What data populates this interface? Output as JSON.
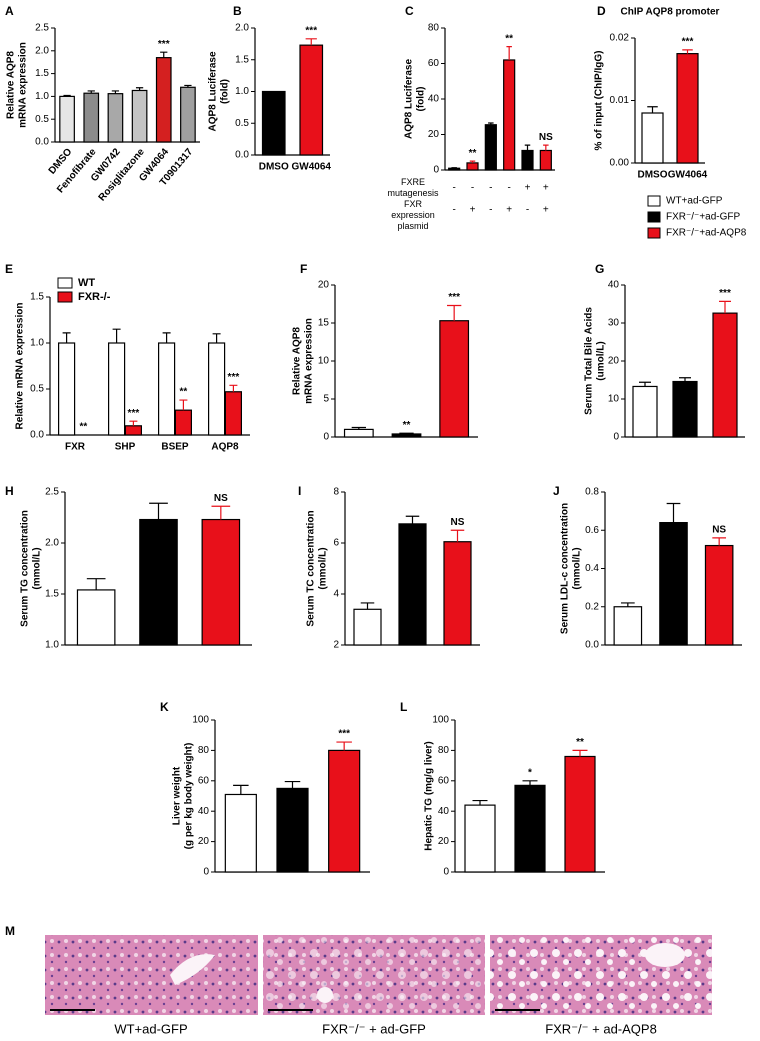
{
  "chart_data": [
    {
      "panel": "A",
      "type": "bar",
      "ylabel": [
        "Relative AQP8",
        "mRNA expression"
      ],
      "categories": [
        "DMSO",
        "Fenofibrate",
        "GW0742",
        "Rosiglitazone",
        "GW4064",
        "T0901317"
      ],
      "values": [
        1.0,
        1.07,
        1.06,
        1.13,
        1.85,
        1.2
      ],
      "errors": [
        0.02,
        0.05,
        0.06,
        0.06,
        0.12,
        0.04
      ],
      "colors": [
        "#e6e6e6",
        "#8c8c8c",
        "#a8a8a8",
        "#c4c4c4",
        "#d42020",
        "#a0a0a0"
      ],
      "significance": [
        null,
        null,
        null,
        null,
        "***",
        null
      ],
      "ylim": [
        0,
        2.5
      ],
      "yticks": [
        {
          "value": 0,
          "label": "0.0"
        },
        0.5,
        {
          "value": 1,
          "label": "1.0"
        },
        1.5,
        {
          "value": 2,
          "label": "2.0"
        },
        2.5
      ]
    },
    {
      "panel": "B",
      "type": "bar",
      "ylabel": [
        "AQP8 Luciferase",
        "(fold)"
      ],
      "categories": [
        "DMSO",
        "GW4064"
      ],
      "values": [
        1.0,
        1.73
      ],
      "errors": [
        null,
        0.1
      ],
      "colors": [
        "#000000",
        "#e8101a"
      ],
      "significance": [
        null,
        "***"
      ],
      "ylim": [
        0,
        2
      ],
      "yticks": [
        {
          "value": 0,
          "label": "0.0"
        },
        0.5,
        {
          "value": 1,
          "label": "1.0"
        },
        1.5,
        {
          "value": 2,
          "label": "2.0"
        }
      ]
    },
    {
      "panel": "C",
      "type": "bar",
      "ylabel": [
        "AQP8 Luciferase",
        "(fold)"
      ],
      "values": [
        1,
        4,
        25.5,
        62,
        11,
        11
      ],
      "errors": [
        0.3,
        1,
        1,
        7.5,
        3,
        3
      ],
      "colors": [
        "#000000",
        "#e8101a",
        "#000000",
        "#e8101a",
        "#000000",
        "#e8101a"
      ],
      "significance": [
        null,
        "**",
        null,
        "**",
        null,
        "NS"
      ],
      "ylim": [
        0,
        80
      ],
      "yticks": [
        0,
        20,
        40,
        60,
        80
      ],
      "conditions": [
        {
          "label": "FXRE mutagenesis",
          "values": [
            "-",
            "-",
            "-",
            "-",
            "+",
            "+"
          ]
        },
        {
          "label": "FXR expression plasmid",
          "values": [
            "-",
            "+",
            "-",
            "+",
            "-",
            "+"
          ]
        }
      ]
    },
    {
      "panel": "D",
      "type": "bar",
      "title": "ChIP AQP8 promoter",
      "ylabel": [
        "% of input  (ChIP/IgG)"
      ],
      "categories": [
        "DMSO",
        "GW4064"
      ],
      "values": [
        0.008,
        0.0175
      ],
      "errors": [
        0.001,
        0.0006
      ],
      "colors": [
        "#ffffff",
        "#e8101a"
      ],
      "significance": [
        null,
        "***"
      ],
      "ylim": [
        0,
        0.02
      ],
      "yticks": [
        {
          "value": 0,
          "label": "0.00"
        },
        0.01,
        0.02
      ]
    },
    {
      "panel": "E",
      "type": "bar",
      "ylabel": [
        "Relative mRNA expression"
      ],
      "categories": [
        "FXR",
        "SHP",
        "BSEP",
        "AQP8"
      ],
      "legend": "upper left",
      "series": [
        {
          "name": "WT",
          "color": "#ffffff",
          "values": [
            1,
            1,
            1,
            1
          ],
          "errors": [
            0.11,
            0.15,
            0.11,
            0.1
          ]
        },
        {
          "name": "FXR-/-",
          "color": "#e8101a",
          "values": [
            0,
            0.1,
            0.27,
            0.47
          ],
          "errors": [
            null,
            0.05,
            0.11,
            0.07
          ],
          "significance": [
            "**",
            "***",
            "**",
            "***"
          ]
        }
      ],
      "ylim": [
        0,
        1.5
      ],
      "yticks": [
        {
          "value": 0,
          "label": "0.0"
        },
        0.5,
        {
          "value": 1,
          "label": "1.0"
        },
        1.5
      ]
    },
    {
      "panel": "F",
      "type": "bar",
      "ylabel": [
        "Relative AQP8",
        "mRNA expression"
      ],
      "values": [
        1.0,
        0.4,
        15.3
      ],
      "errors": [
        0.25,
        0.1,
        2
      ],
      "colors": [
        "#ffffff",
        "#000000",
        "#e8101a"
      ],
      "significance": [
        null,
        "**",
        "***"
      ],
      "ylim": [
        0,
        20
      ],
      "yticks": [
        0,
        5,
        10,
        15,
        20
      ]
    },
    {
      "panel": "G",
      "type": "bar",
      "ylabel": [
        "Serum Total Bile Acids",
        "(umol/L)"
      ],
      "values": [
        13.3,
        14.6,
        32.6
      ],
      "errors": [
        1.1,
        1,
        3.1
      ],
      "colors": [
        "#ffffff",
        "#000000",
        "#e8101a"
      ],
      "significance": [
        null,
        null,
        "***"
      ],
      "ylim": [
        0,
        40
      ],
      "yticks": [
        0,
        10,
        20,
        30,
        40
      ]
    },
    {
      "panel": "H",
      "type": "bar",
      "ylabel": [
        "Serum TG concentration",
        "(mmol/L)"
      ],
      "values": [
        1.54,
        2.23,
        2.23
      ],
      "errors": [
        0.11,
        0.16,
        0.13
      ],
      "colors": [
        "#ffffff",
        "#000000",
        "#e8101a"
      ],
      "significance": [
        null,
        null,
        "NS"
      ],
      "ylim": [
        1,
        2.5
      ],
      "yticks": [
        {
          "value": 1,
          "label": "1.0"
        },
        1.5,
        {
          "value": 2,
          "label": "2.0"
        },
        2.5
      ]
    },
    {
      "panel": "I",
      "type": "bar",
      "ylabel": [
        "Serum TC concentration",
        "(mmol/L)"
      ],
      "values": [
        3.4,
        6.75,
        6.05
      ],
      "errors": [
        0.25,
        0.3,
        0.45
      ],
      "colors": [
        "#ffffff",
        "#000000",
        "#e8101a"
      ],
      "significance": [
        null,
        null,
        "NS"
      ],
      "ylim": [
        2,
        8
      ],
      "yticks": [
        2,
        4,
        6,
        8
      ]
    },
    {
      "panel": "J",
      "type": "bar",
      "ylabel": [
        "Serum LDL-c concentration",
        "(mmol/L)"
      ],
      "values": [
        0.2,
        0.64,
        0.52
      ],
      "errors": [
        0.02,
        0.1,
        0.04
      ],
      "colors": [
        "#ffffff",
        "#000000",
        "#e8101a"
      ],
      "significance": [
        null,
        null,
        "NS"
      ],
      "ylim": [
        0,
        0.8
      ],
      "yticks": [
        {
          "value": 0,
          "label": "0.0"
        },
        0.2,
        0.4,
        0.6,
        0.8
      ]
    },
    {
      "panel": "K",
      "type": "bar",
      "ylabel": [
        "Liver weight",
        "(g per kg body weight)"
      ],
      "values": [
        51,
        55,
        80
      ],
      "errors": [
        6,
        4.5,
        5.5
      ],
      "colors": [
        "#ffffff",
        "#000000",
        "#e8101a"
      ],
      "significance": [
        null,
        null,
        "***"
      ],
      "ylim": [
        0,
        100
      ],
      "yticks": [
        0,
        20,
        40,
        60,
        80,
        100
      ]
    },
    {
      "panel": "L",
      "type": "bar",
      "ylabel": [
        "Hepatic TG  (mg/g liver)"
      ],
      "values": [
        44,
        57,
        76
      ],
      "errors": [
        3,
        3,
        4
      ],
      "colors": [
        "#ffffff",
        "#000000",
        "#e8101a"
      ],
      "significance": [
        null,
        "*",
        "**"
      ],
      "ylim": [
        0,
        100
      ],
      "yticks": [
        0,
        20,
        40,
        60,
        80,
        100
      ]
    }
  ],
  "group_legend": {
    "series": [
      {
        "name": "WT+ad-GFP",
        "color": "#ffffff"
      },
      {
        "name": "FXR⁻/⁻+ad-GFP",
        "color": "#000000"
      },
      {
        "name": "FXR⁻/⁻+ad-AQP8",
        "color": "#e8101a"
      }
    ]
  },
  "histology": {
    "panel": "M",
    "captions": [
      "WT+ad-GFP",
      "FXR⁻/⁻ + ad-GFP",
      "FXR⁻/⁻ + ad-AQP8"
    ]
  }
}
